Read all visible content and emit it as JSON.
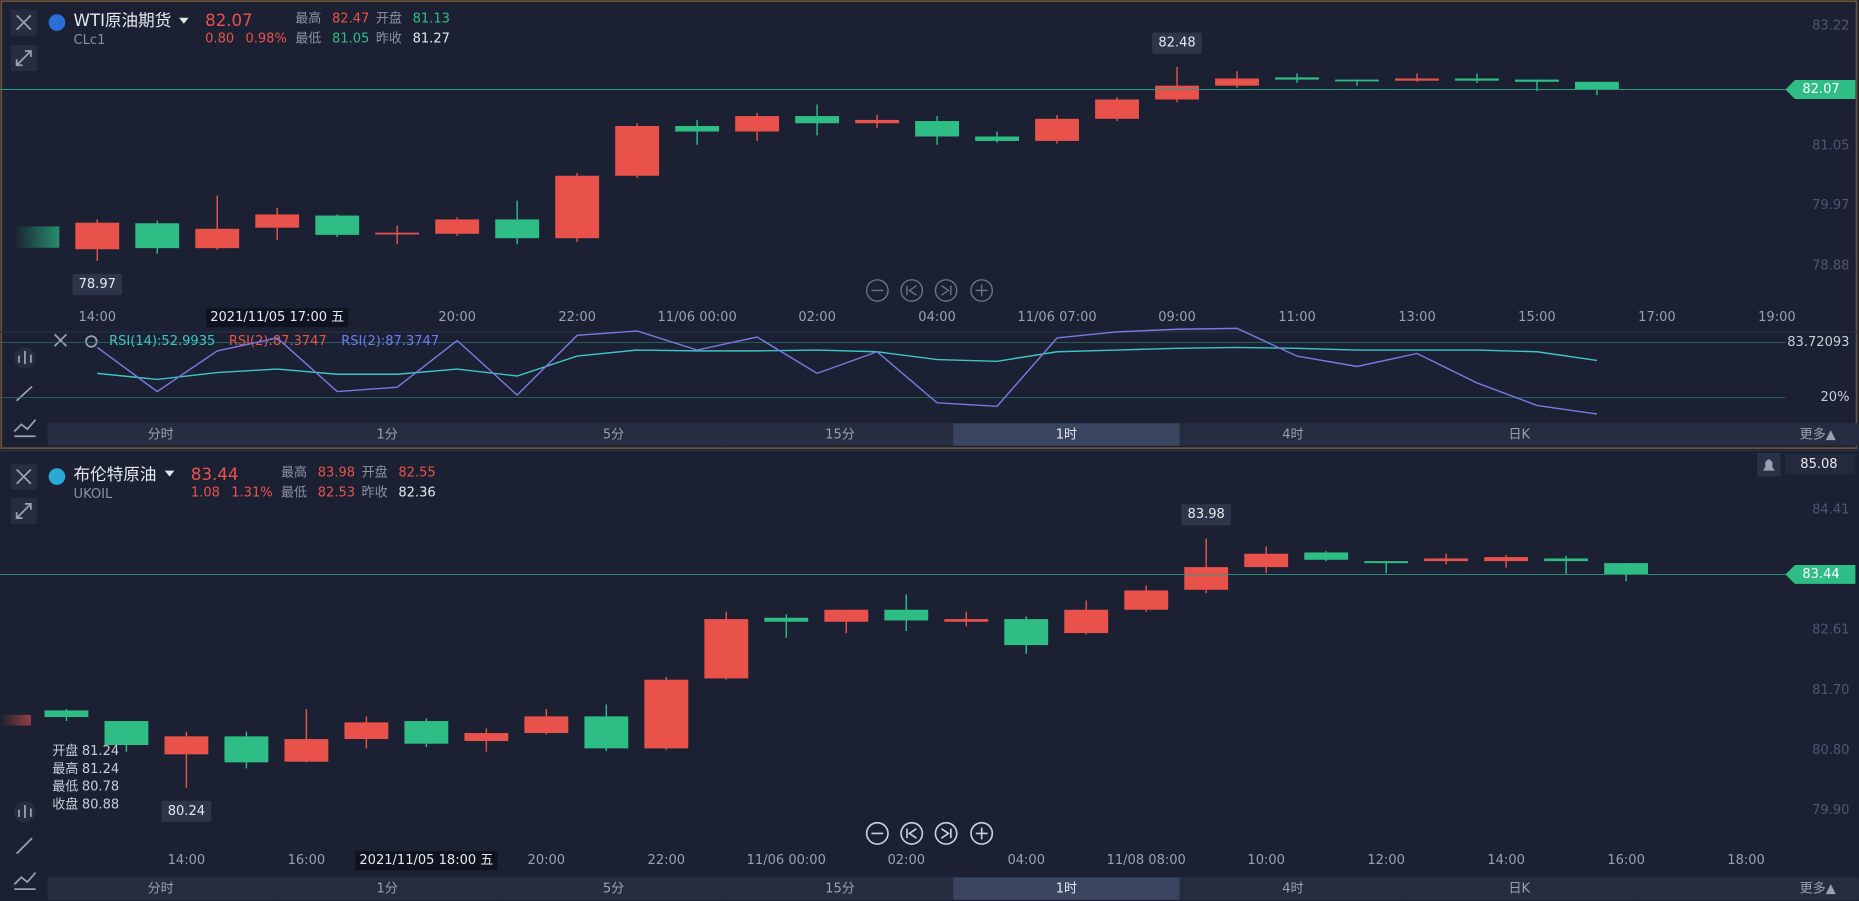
{
  "tabs": [
    "分时",
    "1分",
    "5分",
    "15分",
    "1时",
    "4时",
    "日K",
    "更多▲"
  ],
  "selected_tab": 4,
  "panels": [
    {
      "name": "WTI原油期货",
      "symbol": "CLc1",
      "price": 82.07,
      "change": "0.80",
      "change_pct": "0.98%",
      "stats": [
        {
          "label": "最高",
          "value": "82.47",
          "color": "#e8524a"
        },
        {
          "label": "开盘",
          "value": "81.13",
          "color": "#2dbd85"
        },
        {
          "label": "最低",
          "value": "81.05",
          "color": "#2dbd85"
        },
        {
          "label": "昨收",
          "value": "81.27",
          "color": "#e6e8ee"
        }
      ],
      "ylim": [
        78.22,
        83.69
      ],
      "yticks": [
        83.22,
        81.05,
        79.97,
        78.88
      ],
      "x_labels": [
        "14:00",
        "20:00",
        "22:00",
        "11/06 00:00",
        "02:00",
        "04:00",
        "11/06 07:00",
        "09:00",
        "11:00",
        "13:00",
        "15:00",
        "17:00",
        "19:00"
      ],
      "crosshair_time": "2021/11/05 17:00 五",
      "up_color": "#e8524a",
      "down_color": "#2dbd85",
      "candles": [
        {
          "open": 79.18,
          "close": 79.66,
          "high": 79.72,
          "low": 78.97
        },
        {
          "open": 79.65,
          "close": 79.2,
          "high": 79.7,
          "low": 79.1
        },
        {
          "open": 79.2,
          "close": 79.55,
          "high": 80.15,
          "low": 79.17
        },
        {
          "open": 79.57,
          "close": 79.81,
          "high": 79.93,
          "low": 79.35
        },
        {
          "open": 79.79,
          "close": 79.44,
          "high": 79.81,
          "low": 79.4
        },
        {
          "open": 79.46,
          "close": 79.48,
          "high": 79.61,
          "low": 79.27
        },
        {
          "open": 79.46,
          "close": 79.72,
          "high": 79.76,
          "low": 79.42
        },
        {
          "open": 79.72,
          "close": 79.38,
          "high": 80.06,
          "low": 79.27
        },
        {
          "open": 79.38,
          "close": 80.51,
          "high": 80.56,
          "low": 79.31
        },
        {
          "open": 80.51,
          "close": 81.41,
          "high": 81.46,
          "low": 80.47
        },
        {
          "open": 81.41,
          "close": 81.31,
          "high": 81.52,
          "low": 81.07
        },
        {
          "open": 81.31,
          "close": 81.59,
          "high": 81.65,
          "low": 81.14
        },
        {
          "open": 81.59,
          "close": 81.46,
          "high": 81.8,
          "low": 81.24
        },
        {
          "open": 81.46,
          "close": 81.52,
          "high": 81.61,
          "low": 81.37
        },
        {
          "open": 81.5,
          "close": 81.22,
          "high": 81.59,
          "low": 81.07
        },
        {
          "open": 81.22,
          "close": 81.14,
          "high": 81.31,
          "low": 81.11
        },
        {
          "open": 81.14,
          "close": 81.54,
          "high": 81.61,
          "low": 81.09
        },
        {
          "open": 81.54,
          "close": 81.89,
          "high": 81.93,
          "low": 81.5
        },
        {
          "open": 81.89,
          "close": 82.14,
          "high": 82.48,
          "low": 81.84
        },
        {
          "open": 82.14,
          "close": 82.27,
          "high": 82.4,
          "low": 82.1
        },
        {
          "open": 82.29,
          "close": 82.25,
          "high": 82.36,
          "low": 82.19
        },
        {
          "open": 82.25,
          "close": 82.23,
          "high": 82.25,
          "low": 82.14
        },
        {
          "open": 82.23,
          "close": 82.27,
          "high": 82.36,
          "low": 82.21
        },
        {
          "open": 82.27,
          "close": 82.23,
          "high": 82.36,
          "low": 82.19
        },
        {
          "open": 82.25,
          "close": 82.21,
          "high": 82.25,
          "low": 82.04
        },
        {
          "open": 82.21,
          "close": 82.07,
          "high": 82.21,
          "low": 81.97
        }
      ],
      "high_label": {
        "candle": 18,
        "field": "high"
      },
      "low_label": {
        "candle": 0,
        "field": "low"
      },
      "rsi": {
        "ylim": [
          0,
          100
        ],
        "ticks": [
          83.72093,
          {
            "value": 20,
            "label": "20%"
          }
        ],
        "legend": [
          {
            "text": "RSI(14):52.9935",
            "color": "#3ec5c5"
          },
          {
            "text": "RSI(2):87.3747",
            "color": "#e8524a"
          },
          {
            "text": "RSI(2):87.3747",
            "color": "#6f7cf0"
          }
        ],
        "lines": [
          {
            "color": "#3ec5c5",
            "values": [
              48,
              41,
              49,
              53,
              47,
              47,
              53,
              45,
              68,
              75,
              74,
              74,
              75,
              73,
              64,
              62,
              73,
              75,
              77,
              78,
              77,
              75,
              75,
              75,
              73,
              63
            ]
          },
          {
            "color": "#7b78e0",
            "values": [
              78,
              27,
              74,
              89,
              27,
              32,
              86,
              23,
              92,
              97,
              75,
              90,
              48,
              73,
              14,
              10,
              89,
              96,
              99,
              100,
              68,
              56,
              71,
              37,
              11,
              1
            ]
          }
        ]
      }
    },
    {
      "name": "布伦特原油",
      "symbol": "UKOIL",
      "price": 83.44,
      "change": "1.08",
      "change_pct": "1.31%",
      "stats": [
        {
          "label": "最高",
          "value": "83.98",
          "color": "#e8524a"
        },
        {
          "label": "开盘",
          "value": "82.55",
          "color": "#e8524a"
        },
        {
          "label": "最低",
          "value": "82.53",
          "color": "#e8524a"
        },
        {
          "label": "昨收",
          "value": "82.36",
          "color": "#e6e8ee"
        }
      ],
      "alert_price": "85.08",
      "ylim": [
        79.34,
        85.3
      ],
      "yticks": [
        84.41,
        82.61,
        {
          "value": 81.7,
          "label": "81.70"
        },
        {
          "value": 80.8,
          "label": "80.80"
        },
        {
          "value": 79.9,
          "label": "79.90"
        }
      ],
      "x_labels": [
        "14:00",
        "16:00",
        "20:00",
        "22:00",
        "11/06 00:00",
        "02:00",
        "04:00",
        "11/08 08:00",
        "10:00",
        "12:00",
        "14:00",
        "16:00",
        "18:00"
      ],
      "crosshair_time": "2021/11/05 18:00 五",
      "up_color": "#e8524a",
      "down_color": "#2dbd85",
      "ohlc_labels": [
        "开盘",
        "最高",
        "最低",
        "收盘"
      ],
      "ohlc_candle": 1,
      "candles": [
        {
          "open": 81.4,
          "close": 81.3,
          "high": 81.42,
          "low": 81.24
        },
        {
          "open": 81.24,
          "close": 80.88,
          "high": 81.24,
          "low": 80.78
        },
        {
          "open": 80.74,
          "close": 81.01,
          "high": 81.08,
          "low": 80.24
        },
        {
          "open": 81.01,
          "close": 80.62,
          "high": 81.08,
          "low": 80.53
        },
        {
          "open": 80.63,
          "close": 80.97,
          "high": 81.42,
          "low": 80.62
        },
        {
          "open": 80.97,
          "close": 81.22,
          "high": 81.31,
          "low": 80.83
        },
        {
          "open": 81.24,
          "close": 80.9,
          "high": 81.28,
          "low": 80.85
        },
        {
          "open": 80.94,
          "close": 81.06,
          "high": 81.13,
          "low": 80.78
        },
        {
          "open": 81.06,
          "close": 81.31,
          "high": 81.42,
          "low": 81.04
        },
        {
          "open": 81.31,
          "close": 80.83,
          "high": 81.49,
          "low": 80.79
        },
        {
          "open": 80.83,
          "close": 81.86,
          "high": 81.9,
          "low": 80.81
        },
        {
          "open": 81.88,
          "close": 82.77,
          "high": 82.88,
          "low": 81.86
        },
        {
          "open": 82.79,
          "close": 82.73,
          "high": 82.84,
          "low": 82.49
        },
        {
          "open": 82.73,
          "close": 82.91,
          "high": 82.91,
          "low": 82.56
        },
        {
          "open": 82.91,
          "close": 82.75,
          "high": 83.14,
          "low": 82.59
        },
        {
          "open": 82.73,
          "close": 82.77,
          "high": 82.88,
          "low": 82.66
        },
        {
          "open": 82.77,
          "close": 82.38,
          "high": 82.81,
          "low": 82.25
        },
        {
          "open": 82.56,
          "close": 82.91,
          "high": 83.05,
          "low": 82.54
        },
        {
          "open": 82.91,
          "close": 83.2,
          "high": 83.27,
          "low": 82.88
        },
        {
          "open": 83.21,
          "close": 83.55,
          "high": 83.98,
          "low": 83.16
        },
        {
          "open": 83.55,
          "close": 83.75,
          "high": 83.86,
          "low": 83.46
        },
        {
          "open": 83.77,
          "close": 83.66,
          "high": 83.79,
          "low": 83.64
        },
        {
          "open": 83.64,
          "close": 83.61,
          "high": 83.64,
          "low": 83.46
        },
        {
          "open": 83.64,
          "close": 83.68,
          "high": 83.75,
          "low": 83.59
        },
        {
          "open": 83.64,
          "close": 83.7,
          "high": 83.73,
          "low": 83.54
        },
        {
          "open": 83.68,
          "close": 83.64,
          "high": 83.72,
          "low": 83.45
        },
        {
          "open": 83.61,
          "close": 83.44,
          "high": 83.61,
          "low": 83.34
        }
      ],
      "high_label": {
        "candle": 19,
        "field": "high"
      },
      "low_label": {
        "candle": 2,
        "field": "low"
      }
    }
  ]
}
